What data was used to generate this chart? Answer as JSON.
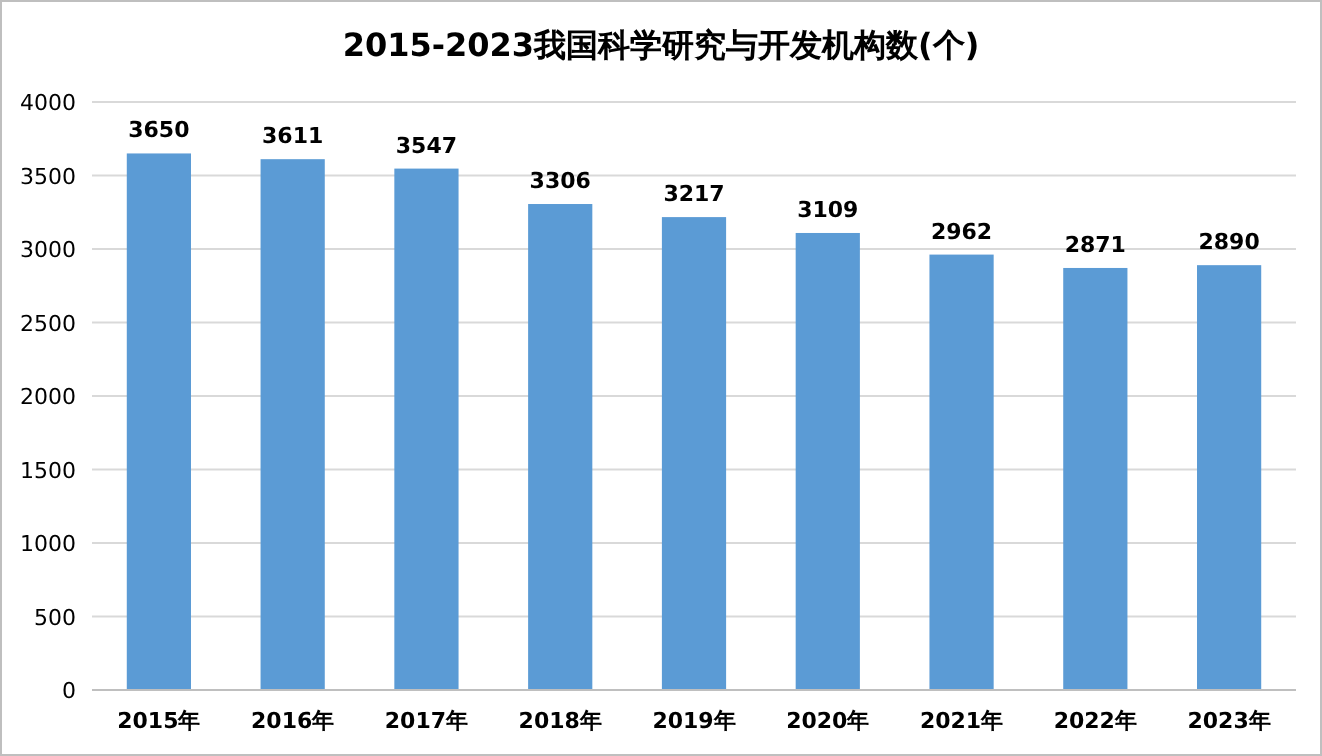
{
  "chart_data": {
    "type": "bar",
    "title": "2015-2023我国科学研究与开发机构数(个)",
    "categories": [
      "2015年",
      "2016年",
      "2017年",
      "2018年",
      "2019年",
      "2020年",
      "2021年",
      "2022年",
      "2023年"
    ],
    "values": [
      3650,
      3611,
      3547,
      3306,
      3217,
      3109,
      2962,
      2871,
      2890
    ],
    "color": "#5b9bd5",
    "ylim": [
      0,
      4000
    ],
    "yticks": [
      0,
      500,
      1000,
      1500,
      2000,
      2500,
      3000,
      3500,
      4000
    ],
    "grid": "y",
    "data_labels": true
  }
}
